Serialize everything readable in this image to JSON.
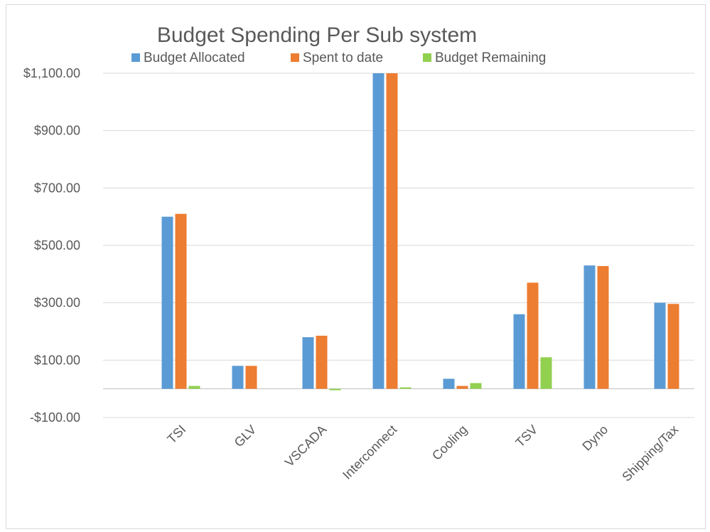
{
  "chart_data": {
    "type": "bar",
    "title": "Budget Spending Per Sub system",
    "xlabel": "",
    "ylabel": "",
    "ylim": [
      -100,
      1100
    ],
    "yticks": [
      -100,
      100,
      300,
      500,
      700,
      900,
      1100
    ],
    "ytick_labels": [
      "-$100.00",
      "$100.00",
      "$300.00",
      "$500.00",
      "$700.00",
      "$900.00",
      "$1,100.00"
    ],
    "grid": true,
    "legend_position": "top",
    "categories": [
      "TSI",
      "GLV",
      "VSCADA",
      "Interconnect",
      "Cooling",
      "TSV",
      "Dyno",
      "Shipping/Tax"
    ],
    "series": [
      {
        "name": "Budget Allocated",
        "color": "#5B9BD5",
        "values": [
          600,
          80,
          180,
          1100,
          35,
          260,
          430,
          300
        ]
      },
      {
        "name": "Spent to date",
        "color": "#ED7D31",
        "values": [
          610,
          80,
          185,
          1100,
          10,
          370,
          428,
          296
        ]
      },
      {
        "name": "Budget Remaining",
        "color": "#92D050",
        "values": [
          10,
          0,
          -5,
          5,
          20,
          110,
          0,
          0
        ]
      }
    ]
  }
}
